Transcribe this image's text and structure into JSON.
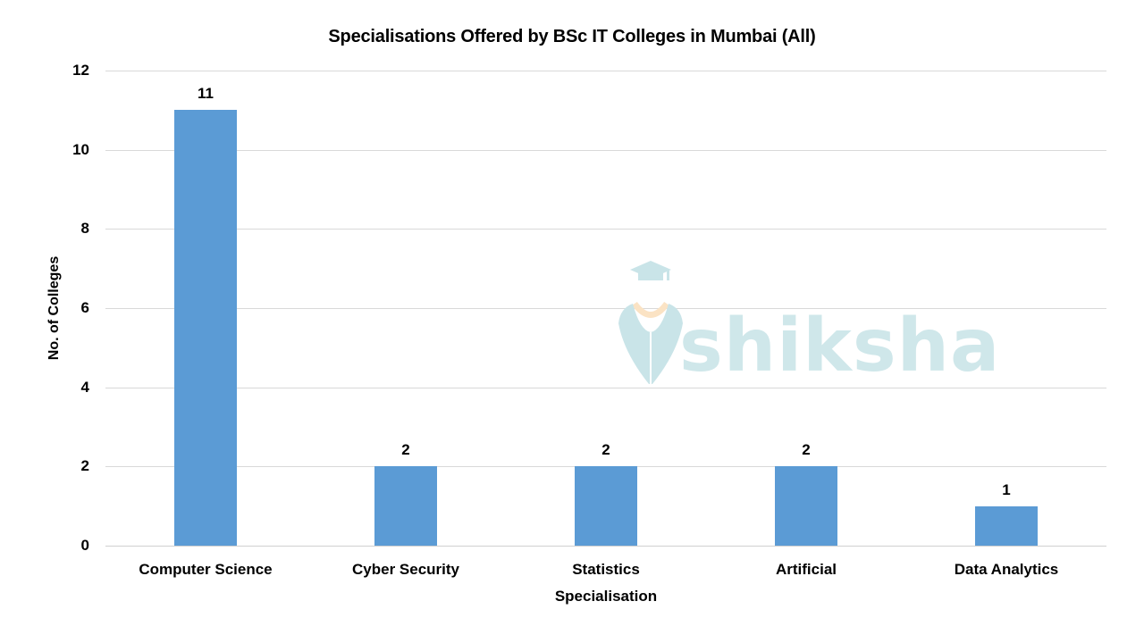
{
  "chart_data": {
    "type": "bar",
    "title": "Specialisations Offered by BSc IT Colleges in Mumbai (All)",
    "xlabel": "Specialisation",
    "ylabel": "No. of Colleges",
    "categories": [
      "Computer Science",
      "Cyber Security",
      "Statistics",
      "Artificial",
      "Data Analytics"
    ],
    "values": [
      11,
      2,
      2,
      2,
      1
    ],
    "data_labels": [
      "11",
      "2",
      "2",
      "2",
      "1"
    ],
    "ylim": [
      0,
      12
    ],
    "yticks": [
      0,
      2,
      4,
      6,
      8,
      10,
      12
    ],
    "ytick_labels": [
      "0",
      "2",
      "4",
      "6",
      "8",
      "10",
      "12"
    ],
    "grid": true,
    "legend": null,
    "bar_color": "#5b9bd5"
  },
  "watermark": {
    "text": "shiksha",
    "icon": "graduation-cap-pen-nib-icon"
  }
}
